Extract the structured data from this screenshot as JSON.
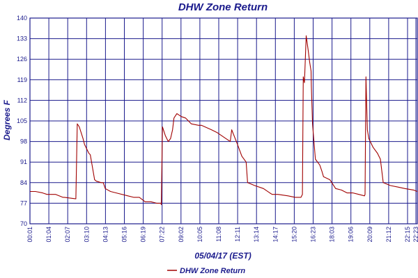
{
  "chart_data": {
    "type": "line",
    "title": "DHW Zone Return",
    "xlabel": "05/04/17 (EST)",
    "ylabel": "Degrees F",
    "ylim": [
      70,
      140
    ],
    "y_ticks": [
      "70",
      "77",
      "84",
      "91",
      "98",
      "105",
      "112",
      "119",
      "126",
      "133",
      "140"
    ],
    "x_ticks": [
      "00:01",
      "01:04",
      "02:07",
      "03:10",
      "04:13",
      "05:16",
      "06:19",
      "07:22",
      "09:02",
      "10:05",
      "11:08",
      "12:11",
      "13:14",
      "14:17",
      "15:20",
      "16:23",
      "18:03",
      "19:06",
      "20:09",
      "21:12",
      "22:15",
      "22:23"
    ],
    "x_range_minutes": [
      1,
      1343
    ],
    "grid": true,
    "legend": "bottom-center",
    "colors": {
      "line": "#a00000",
      "grid": "#1a1a8c",
      "text": "#1a1a8c"
    },
    "series": [
      {
        "name": "DHW Zone Return",
        "x": [
          1,
          20,
          45,
          60,
          90,
          115,
          120,
          160,
          165,
          172,
          185,
          190,
          205,
          210,
          225,
          231,
          248,
          255,
          262,
          280,
          300,
          340,
          360,
          380,
          400,
          420,
          440,
          455,
          456,
          460,
          470,
          480,
          488,
          495,
          500,
          510,
          525,
          540,
          560,
          585,
          595,
          630,
          650,
          680,
          695,
          700,
          720,
          735,
          750,
          755,
          780,
          810,
          832,
          840,
          860,
          895,
          920,
          940,
          945,
          948,
          952,
          958,
          965,
          970,
          975,
          976,
          980,
          990,
          1005,
          1012,
          1018,
          1040,
          1060,
          1080,
          1100,
          1120,
          1140,
          1160,
          1162,
          1165,
          1170,
          1175,
          1190,
          1205,
          1215,
          1225,
          1250,
          1275,
          1300,
          1330,
          1343
        ],
        "y": [
          81,
          81,
          80.5,
          80,
          80,
          79,
          79,
          78.5,
          104,
          103,
          99,
          97,
          94,
          93.5,
          85,
          84.5,
          84,
          84,
          82,
          81,
          80.5,
          79.5,
          79,
          79,
          77.5,
          77.5,
          77,
          77,
          76.5,
          103,
          100,
          98,
          99,
          102,
          106,
          107.5,
          106.5,
          106,
          104,
          103.5,
          103.5,
          102,
          101,
          99,
          98,
          102,
          97,
          93,
          91,
          84,
          83,
          82,
          80.5,
          80,
          80,
          79.5,
          79,
          79,
          80,
          120,
          118,
          134,
          129,
          125,
          122,
          117,
          104,
          92,
          90,
          88,
          86,
          85,
          82,
          81.5,
          80.5,
          80.5,
          80,
          79.5,
          80,
          120,
          102,
          99,
          96,
          94,
          92,
          84,
          83,
          82.5,
          82,
          81.5,
          81
        ]
      }
    ]
  }
}
